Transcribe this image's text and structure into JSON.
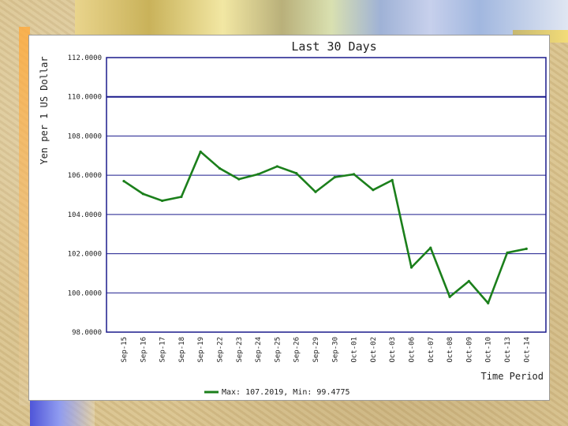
{
  "chart_data": {
    "type": "line",
    "title": "Last 30 Days",
    "xlabel": "Time Period",
    "ylabel": "Yen per 1 US Dollar",
    "categories": [
      "Sep-15",
      "Sep-16",
      "Sep-17",
      "Sep-18",
      "Sep-19",
      "Sep-22",
      "Sep-23",
      "Sep-24",
      "Sep-25",
      "Sep-26",
      "Sep-29",
      "Sep-30",
      "Oct-01",
      "Oct-02",
      "Oct-03",
      "Oct-06",
      "Oct-07",
      "Oct-08",
      "Oct-09",
      "Oct-10",
      "Oct-13",
      "Oct-14"
    ],
    "series": [
      {
        "values": [
          105.7,
          105.05,
          104.7,
          104.9,
          107.2,
          106.35,
          105.8,
          106.05,
          106.45,
          106.1,
          105.15,
          105.9,
          106.05,
          105.25,
          105.75,
          101.3,
          102.3,
          99.8,
          100.6,
          99.4775,
          102.05,
          102.25
        ],
        "color": "#1b7f1b"
      }
    ],
    "ylim": [
      98.0,
      112.0
    ],
    "yticks": [
      "98.0000",
      "100.0000",
      "102.0000",
      "104.0000",
      "106.0000",
      "108.0000",
      "110.0000",
      "112.0000"
    ],
    "ytick_values": [
      98,
      100,
      102,
      104,
      106,
      108,
      110,
      112
    ],
    "grid": true,
    "legend": {
      "placement": "bottom-center",
      "text": "Max: 107.2019, Min: 99.4775"
    },
    "colors": {
      "line": "#1b7f1b",
      "grid": "#1a1a8c",
      "text": "#222222"
    }
  }
}
